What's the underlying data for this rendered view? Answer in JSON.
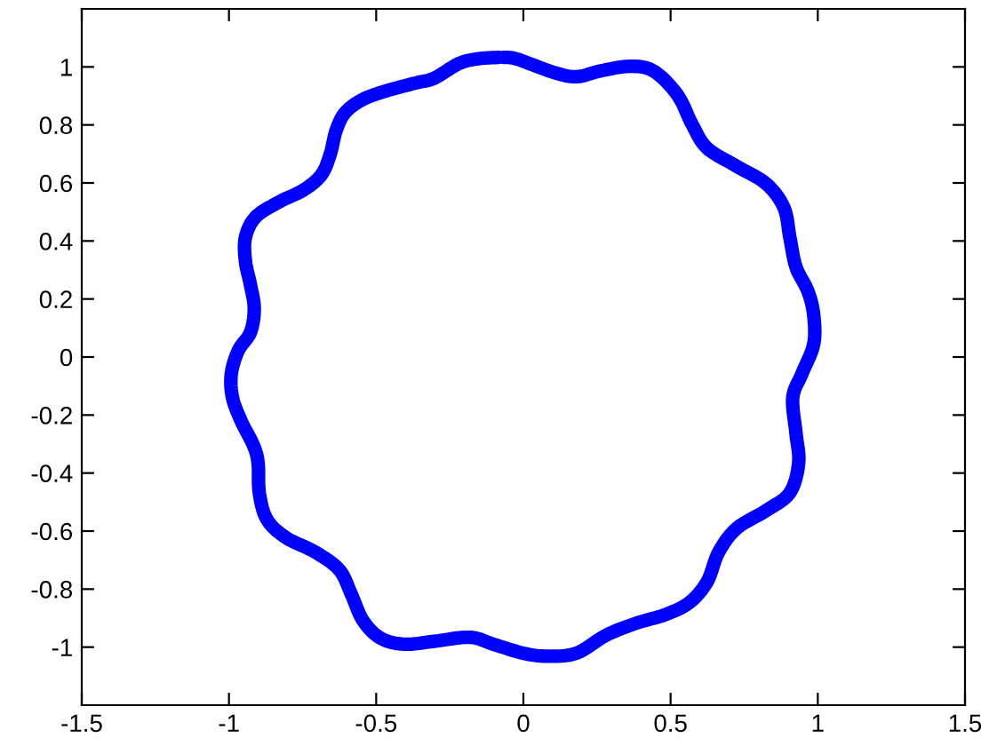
{
  "chart_data": {
    "type": "line",
    "x": [
      -0.082,
      -0.162,
      -0.222,
      -0.303,
      -0.364,
      -0.464,
      -0.545,
      -0.605,
      -0.636,
      -0.656,
      -0.686,
      -0.746,
      -0.827,
      -0.908,
      -0.944,
      -0.944,
      -0.927,
      -0.914,
      -0.927,
      -0.968,
      -0.992,
      -0.988,
      -0.958,
      -0.917,
      -0.901,
      -0.897,
      -0.871,
      -0.807,
      -0.706,
      -0.625,
      -0.585,
      -0.545,
      -0.485,
      -0.404,
      -0.303,
      -0.182,
      -0.102,
      -0.001,
      0.08,
      0.18,
      0.281,
      0.382,
      0.482,
      0.563,
      0.624,
      0.663,
      0.724,
      0.825,
      0.905,
      0.935,
      0.926,
      0.915,
      0.946,
      0.986,
      0.986,
      0.966,
      0.926,
      0.905,
      0.885,
      0.825,
      0.724,
      0.624,
      0.573,
      0.523,
      0.442,
      0.361,
      0.261,
      0.18,
      0.1,
      -0.021,
      -0.068
    ],
    "values": [
      1.033,
      1.027,
      1.01,
      0.961,
      0.945,
      0.918,
      0.888,
      0.843,
      0.781,
      0.699,
      0.628,
      0.576,
      0.536,
      0.484,
      0.413,
      0.33,
      0.249,
      0.167,
      0.085,
      0.023,
      -0.058,
      -0.14,
      -0.222,
      -0.304,
      -0.365,
      -0.468,
      -0.56,
      -0.622,
      -0.673,
      -0.734,
      -0.816,
      -0.908,
      -0.969,
      -0.99,
      -0.98,
      -0.966,
      -0.99,
      -1.021,
      -1.031,
      -1.021,
      -0.959,
      -0.918,
      -0.888,
      -0.847,
      -0.775,
      -0.673,
      -0.591,
      -0.529,
      -0.468,
      -0.365,
      -0.263,
      -0.14,
      -0.058,
      0.044,
      0.146,
      0.228,
      0.31,
      0.413,
      0.515,
      0.597,
      0.658,
      0.72,
      0.802,
      0.904,
      0.986,
      1.002,
      0.986,
      0.966,
      0.982,
      1.027,
      1.033
    ],
    "color": "#0000ff",
    "line_style": "solid",
    "xlim": [
      -1.5,
      1.5
    ],
    "xticks": [
      -1.5,
      -1,
      -0.5,
      0,
      0.5,
      1,
      1.5
    ],
    "ylim": [
      -1.2,
      1.2
    ],
    "yticks": [
      -1,
      -0.8,
      -0.6,
      -0.4,
      -0.2,
      0,
      0.2,
      0.4,
      0.6,
      0.8,
      1
    ],
    "grid": false
  }
}
